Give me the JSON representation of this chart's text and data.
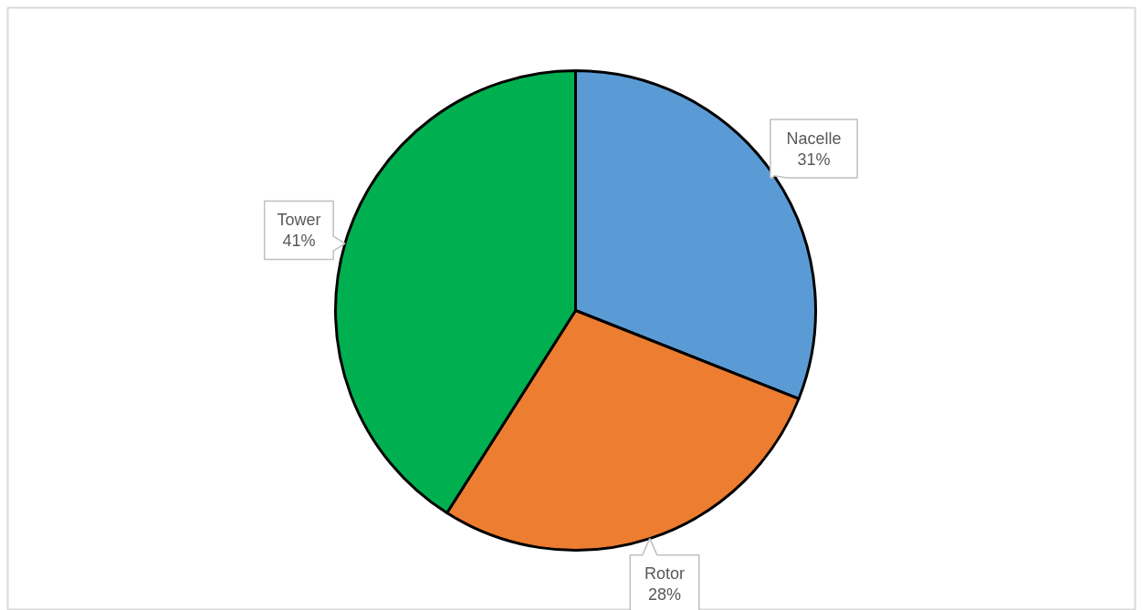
{
  "chart_data": {
    "type": "pie",
    "categories": [
      "Nacelle",
      "Rotor",
      "Tower"
    ],
    "values": [
      31,
      28,
      41
    ],
    "colors": [
      "#5b9bd5",
      "#ed7d31",
      "#00b050"
    ],
    "value_labels": [
      "31%",
      "28%",
      "41%"
    ]
  }
}
